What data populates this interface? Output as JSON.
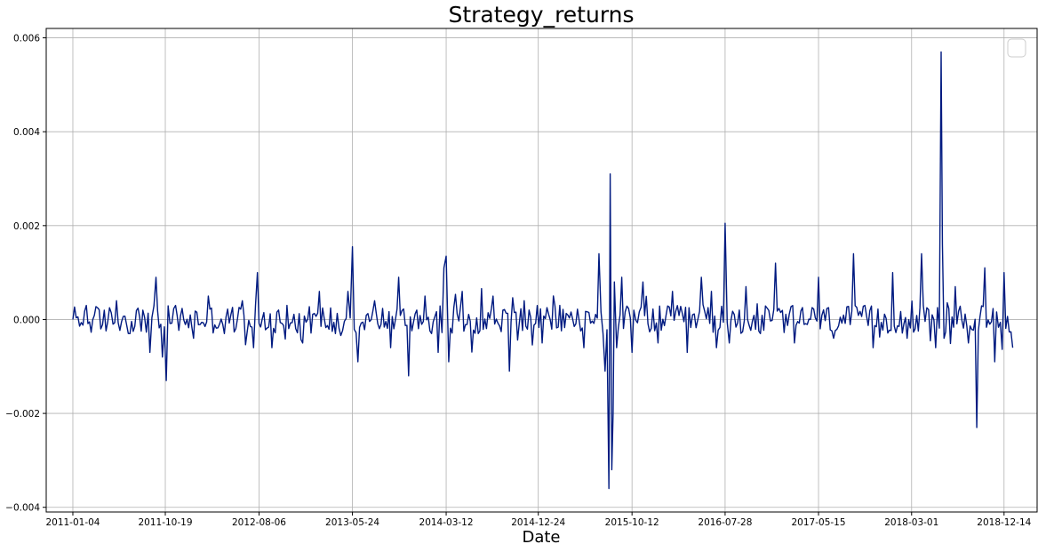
{
  "chart_data": {
    "type": "line",
    "title": "Strategy_returns",
    "xlabel": "Date",
    "ylabel": "",
    "x_ticks": [
      "2011-01-04",
      "2011-10-19",
      "2012-08-06",
      "2013-05-24",
      "2014-03-12",
      "2014-12-24",
      "2015-10-12",
      "2016-07-28",
      "2017-05-15",
      "2018-03-01",
      "2018-12-14"
    ],
    "y_ticks": [
      "0.006",
      "0.004",
      "0.002",
      "0.000",
      "−0.002",
      "−0.004"
    ],
    "y_tick_values": [
      0.006,
      0.004,
      0.002,
      0.0,
      -0.002,
      -0.004
    ],
    "ylim": [
      -0.0041,
      0.0062
    ],
    "xlim": [
      "2010-10-13",
      "2019-03-27"
    ],
    "grid": true,
    "legend": {
      "placement": "top-right",
      "entries": []
    },
    "series": [
      {
        "color": "#001a80",
        "x": [
          "2011-01-04",
          "2011-02-15",
          "2011-04-01",
          "2011-05-20",
          "2011-07-01",
          "2011-08-10",
          "2011-09-01",
          "2011-09-20",
          "2011-10-10",
          "2011-10-22",
          "2011-11-20",
          "2012-01-15",
          "2012-03-01",
          "2012-04-20",
          "2012-06-15",
          "2012-07-20",
          "2012-08-01",
          "2012-09-15",
          "2012-11-01",
          "2012-12-20",
          "2013-02-10",
          "2013-04-01",
          "2013-05-10",
          "2013-05-24",
          "2013-06-10",
          "2013-08-01",
          "2013-09-20",
          "2013-10-15",
          "2013-11-15",
          "2014-01-05",
          "2014-02-15",
          "2014-03-05",
          "2014-03-12",
          "2014-03-20",
          "2014-05-01",
          "2014-06-20",
          "2014-08-05",
          "2014-09-25",
          "2014-11-10",
          "2015-01-05",
          "2015-03-01",
          "2015-05-15",
          "2015-07-01",
          "2015-07-20",
          "2015-08-01",
          "2015-08-05",
          "2015-08-10",
          "2015-08-14",
          "2015-08-18",
          "2015-08-25",
          "2015-09-10",
          "2015-10-12",
          "2015-11-15",
          "2016-01-01",
          "2016-02-15",
          "2016-04-01",
          "2016-05-15",
          "2016-07-01",
          "2016-07-28",
          "2016-08-10",
          "2016-10-01",
          "2016-11-15",
          "2017-01-01",
          "2017-03-01",
          "2017-05-15",
          "2017-07-01",
          "2017-09-01",
          "2017-11-01",
          "2018-01-01",
          "2018-02-15",
          "2018-04-01",
          "2018-05-15",
          "2018-06-01",
          "2018-06-05",
          "2018-06-10",
          "2018-07-15",
          "2018-08-25",
          "2018-09-20",
          "2018-10-15",
          "2018-11-15",
          "2018-12-14",
          "2019-01-10"
        ],
        "y": [
          0.0,
          0.0003,
          -0.0002,
          0.0004,
          -0.0003,
          0.0002,
          -0.0007,
          0.0009,
          -0.0008,
          -0.0013,
          0.0003,
          -0.0004,
          0.0005,
          -0.0003,
          0.0004,
          -0.0006,
          0.001,
          -0.0006,
          0.0003,
          -0.0005,
          0.0006,
          -0.0003,
          0.0006,
          0.00155,
          -0.0009,
          0.0004,
          -0.0006,
          0.0009,
          -0.0012,
          0.0005,
          -0.0007,
          0.0011,
          0.00135,
          -0.0009,
          0.0006,
          -0.0003,
          0.0005,
          -0.0011,
          0.0004,
          -0.0005,
          0.0003,
          -0.0006,
          0.0014,
          -0.0011,
          -0.0036,
          0.0031,
          -0.0032,
          -0.002,
          0.0008,
          -0.0006,
          0.0009,
          -0.0007,
          0.0008,
          -0.0005,
          0.0006,
          -0.0007,
          0.0009,
          -0.0006,
          0.00205,
          -0.0005,
          0.0007,
          -0.0003,
          0.0012,
          -0.0005,
          0.0009,
          -0.0004,
          0.0014,
          -0.0006,
          0.001,
          -0.0004,
          0.0014,
          -0.0006,
          0.0057,
          0.0016,
          -0.0004,
          0.0007,
          -0.0005,
          -0.0023,
          0.0011,
          -0.0009,
          0.001,
          -0.0006
        ]
      }
    ]
  }
}
